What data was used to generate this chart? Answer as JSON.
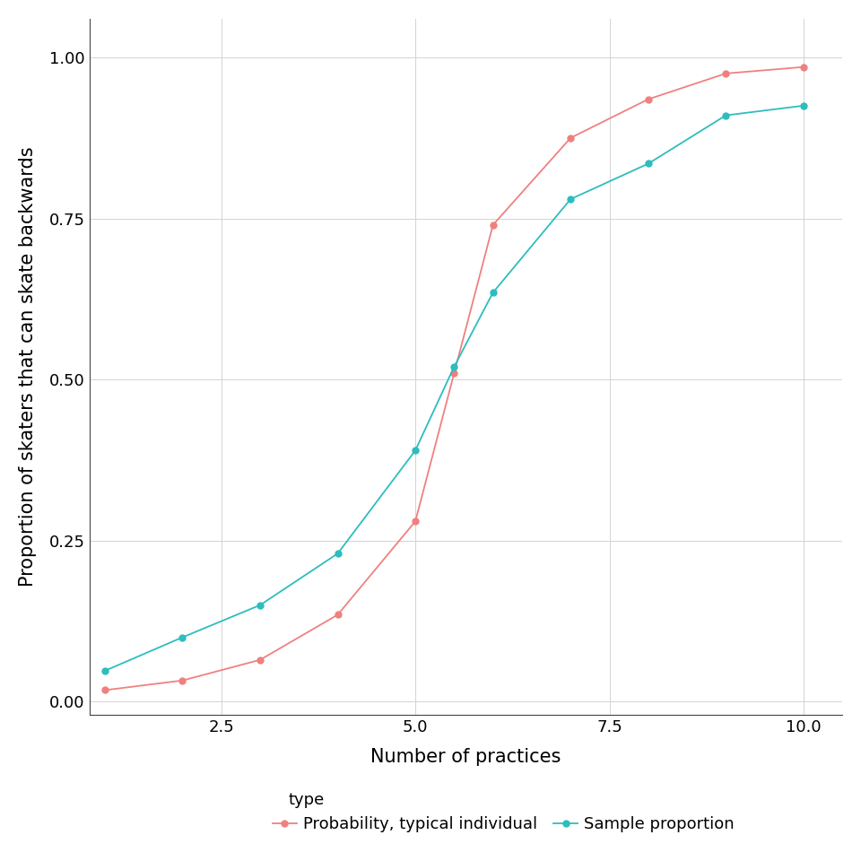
{
  "title": "",
  "xlabel": "Number of practices",
  "ylabel": "Proportion of skaters that can skate backwards",
  "background_color": "#ffffff",
  "panel_background": "#ffffff",
  "grid_color": "#d3d3d3",
  "xlim": [
    0.8,
    10.5
  ],
  "ylim": [
    -0.02,
    1.06
  ],
  "xticks": [
    2.5,
    5.0,
    7.5,
    10.0
  ],
  "yticks": [
    0.0,
    0.25,
    0.5,
    0.75,
    1.0
  ],
  "typical_x": [
    1,
    2,
    3,
    4,
    5,
    5.5,
    6,
    7,
    8,
    9,
    10
  ],
  "typical_y": [
    0.018,
    0.033,
    0.065,
    0.135,
    0.28,
    0.51,
    0.74,
    0.875,
    0.935,
    0.975,
    0.985
  ],
  "sample_x": [
    1,
    2,
    3,
    4,
    5,
    5.5,
    6,
    7,
    8,
    9,
    10
  ],
  "sample_y": [
    0.048,
    0.1,
    0.15,
    0.23,
    0.39,
    0.52,
    0.635,
    0.78,
    0.835,
    0.91,
    0.925
  ],
  "typical_color": "#F08080",
  "sample_color": "#2DBDBD",
  "line_width": 1.3,
  "marker_size": 5,
  "legend_title": "type",
  "legend_label_typical": "Probability, typical individual",
  "legend_label_sample": "Sample proportion",
  "axis_label_fontsize": 15,
  "tick_fontsize": 13,
  "legend_fontsize": 13,
  "legend_title_fontsize": 13
}
